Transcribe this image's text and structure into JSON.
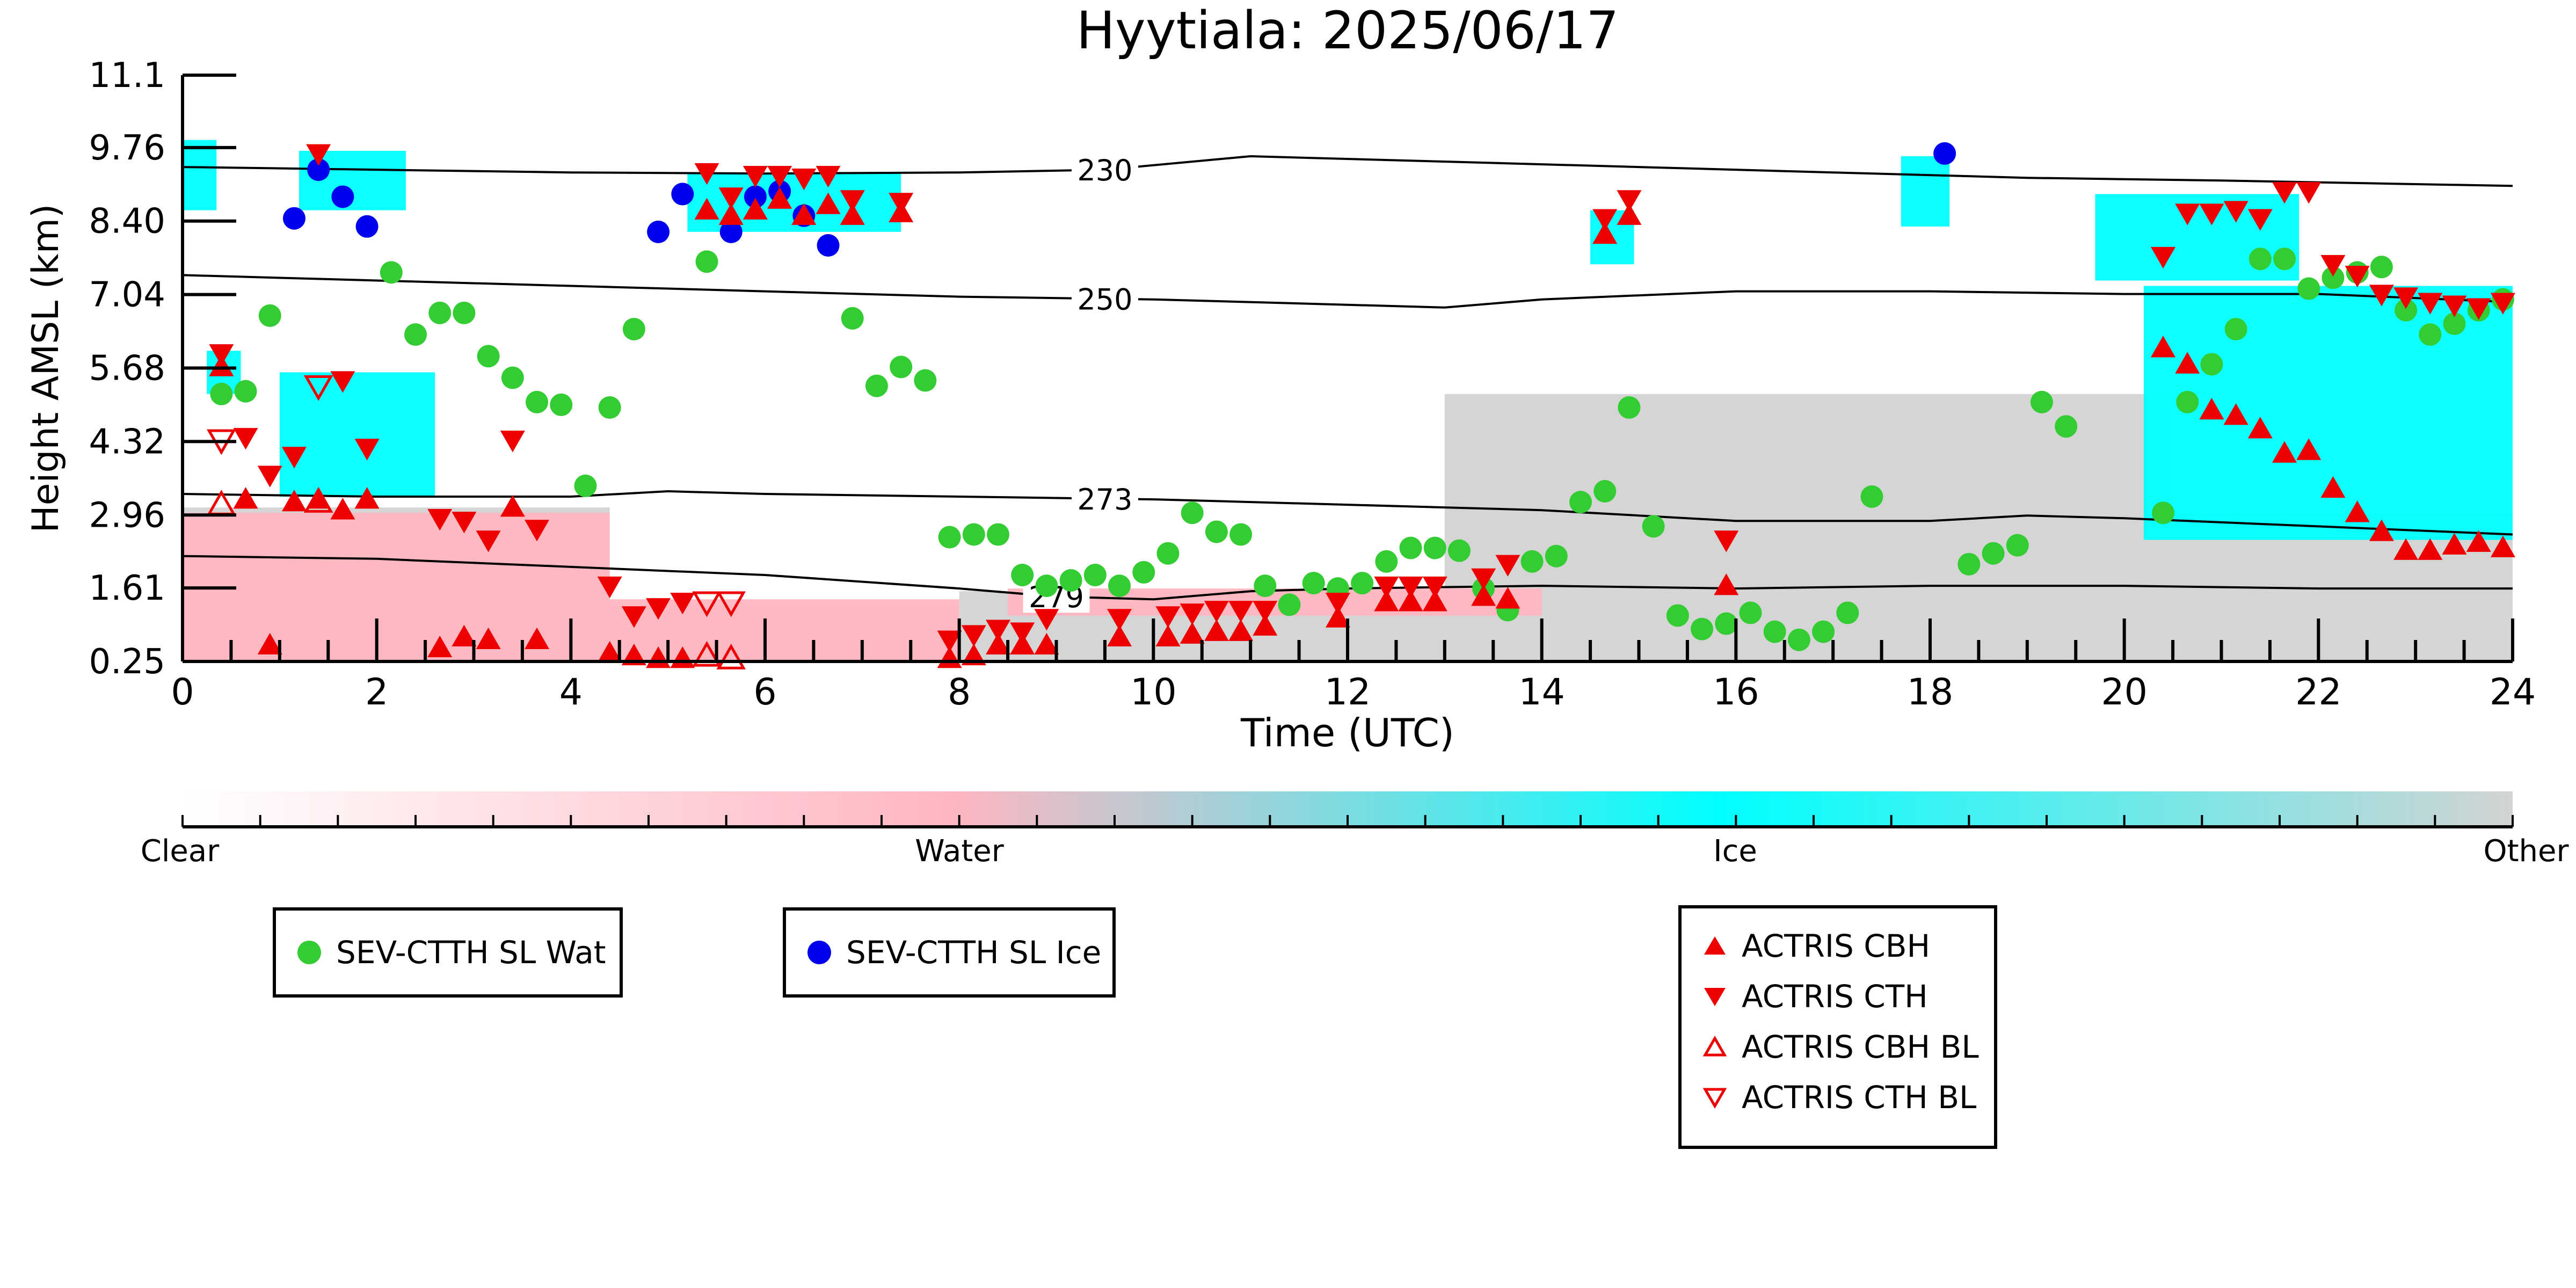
{
  "chart_data": {
    "type": "scatter",
    "title": "Hyytiala: 2025/06/17",
    "xlabel": "Time (UTC)",
    "ylabel": "Height AMSL (km)",
    "xlim": [
      0,
      24
    ],
    "ylim": [
      0.25,
      11.1
    ],
    "xticks": [
      "0",
      "2",
      "4",
      "6",
      "8",
      "10",
      "12",
      "14",
      "16",
      "18",
      "20",
      "22",
      "24"
    ],
    "yticks": [
      "0.25",
      "1.61",
      "2.96",
      "4.32",
      "5.68",
      "7.04",
      "8.40",
      "9.76",
      "11.1"
    ],
    "colorbar": {
      "labels": [
        "Clear",
        "Water",
        "Ice",
        "Other"
      ],
      "colors": [
        "#ffffff",
        "#ffb6c1",
        "#00ffff",
        "#d3d3d3"
      ]
    },
    "isotherms": [
      {
        "label": "230",
        "x": [
          0,
          2,
          4,
          6,
          8,
          9.5,
          11,
          13,
          15,
          17,
          19,
          21,
          22.5,
          24
        ],
        "y": [
          9.4,
          9.35,
          9.3,
          9.28,
          9.3,
          9.35,
          9.6,
          9.5,
          9.4,
          9.3,
          9.2,
          9.15,
          9.1,
          9.05
        ]
      },
      {
        "label": "250",
        "x": [
          0,
          2,
          4,
          6,
          8,
          10,
          12,
          13,
          14,
          16,
          18,
          20,
          22,
          24
        ],
        "y": [
          7.4,
          7.3,
          7.2,
          7.1,
          7.0,
          6.95,
          6.85,
          6.8,
          6.95,
          7.1,
          7.1,
          7.05,
          7.05,
          6.9
        ]
      },
      {
        "label": "273",
        "x": [
          0,
          2,
          4,
          5,
          6,
          8,
          10,
          12,
          14,
          16,
          18,
          19,
          20,
          22,
          24
        ],
        "y": [
          3.35,
          3.3,
          3.3,
          3.4,
          3.35,
          3.3,
          3.25,
          3.15,
          3.05,
          2.85,
          2.85,
          2.95,
          2.9,
          2.75,
          2.6
        ]
      },
      {
        "label": "279",
        "x": [
          0,
          2,
          4,
          6,
          8,
          9,
          10,
          11,
          12,
          14,
          16,
          18,
          20,
          22,
          24
        ],
        "y": [
          2.2,
          2.15,
          2.0,
          1.85,
          1.6,
          1.45,
          1.4,
          1.55,
          1.6,
          1.65,
          1.6,
          1.65,
          1.65,
          1.6,
          1.6
        ]
      }
    ],
    "series": [
      {
        "name": "SEV-CTTH SL Wat",
        "marker": "circle",
        "color": "#33cc33",
        "x": [
          0.4,
          0.65,
          0.9,
          2.15,
          2.4,
          2.65,
          2.9,
          3.15,
          3.4,
          3.65,
          3.9,
          4.15,
          4.4,
          4.65,
          5.4,
          6.9,
          7.15,
          7.4,
          7.65,
          7.9,
          8.15,
          8.4,
          8.65,
          8.9,
          9.15,
          9.4,
          9.65,
          9.9,
          10.15,
          10.4,
          10.65,
          10.9,
          11.15,
          11.4,
          11.65,
          11.9,
          12.15,
          12.4,
          12.65,
          12.9,
          13.15,
          13.4,
          13.65,
          13.9,
          14.15,
          14.4,
          14.65,
          14.9,
          15.15,
          15.4,
          15.65,
          15.9,
          16.15,
          16.4,
          16.65,
          16.9,
          17.15,
          17.4,
          18.4,
          18.65,
          18.9,
          19.15,
          19.4,
          20.4,
          20.65,
          20.9,
          21.15,
          21.4,
          21.65,
          21.9,
          22.15,
          22.4,
          22.65,
          22.9,
          23.15,
          23.4,
          23.65,
          23.9
        ],
        "y": [
          5.2,
          5.25,
          6.65,
          7.45,
          6.3,
          6.7,
          6.7,
          5.9,
          5.5,
          5.05,
          5.0,
          3.5,
          4.95,
          6.4,
          7.65,
          6.6,
          5.35,
          5.7,
          5.45,
          2.55,
          2.6,
          2.6,
          1.85,
          1.65,
          1.75,
          1.85,
          1.65,
          1.9,
          2.25,
          3.0,
          2.65,
          2.6,
          1.65,
          1.3,
          1.7,
          1.6,
          1.7,
          2.1,
          2.35,
          2.35,
          2.3,
          1.6,
          1.2,
          2.1,
          2.2,
          3.2,
          3.4,
          4.95,
          2.75,
          1.1,
          0.85,
          0.95,
          1.15,
          0.8,
          0.65,
          0.8,
          1.15,
          3.3,
          2.05,
          2.25,
          2.4,
          5.05,
          4.6,
          3.0,
          5.05,
          5.75,
          6.4,
          7.7,
          7.7,
          7.15,
          7.35,
          7.45,
          7.55,
          6.75,
          6.3,
          6.5,
          6.75,
          6.95
        ]
      },
      {
        "name": "SEV-CTTH SL Ice",
        "marker": "circle",
        "color": "#0000ee",
        "x": [
          1.15,
          1.4,
          1.65,
          1.9,
          4.9,
          5.15,
          5.65,
          5.9,
          6.15,
          6.4,
          6.65,
          18.15
        ],
        "y": [
          8.45,
          9.35,
          8.85,
          8.3,
          8.2,
          8.9,
          8.2,
          8.85,
          8.95,
          8.5,
          7.95,
          9.65
        ]
      },
      {
        "name": "ACTRIS CBH",
        "marker": "triangle-up",
        "color": "#ee0000",
        "x": [
          0.4,
          0.65,
          0.9,
          1.15,
          1.4,
          1.65,
          1.9,
          2.65,
          2.9,
          3.15,
          3.4,
          3.65,
          4.4,
          4.65,
          4.9,
          5.15,
          5.4,
          5.65,
          5.9,
          6.15,
          6.4,
          6.65,
          6.9,
          7.4,
          7.9,
          8.15,
          8.4,
          8.65,
          8.9,
          9.65,
          10.15,
          10.4,
          10.65,
          10.9,
          11.15,
          11.9,
          12.4,
          12.65,
          12.9,
          13.4,
          13.65,
          14.65,
          14.9,
          15.9,
          20.4,
          20.65,
          20.9,
          21.15,
          21.4,
          21.65,
          21.9,
          22.15,
          22.4,
          22.65,
          22.9,
          23.15,
          23.4,
          23.65,
          23.9
        ],
        "y": [
          5.7,
          3.25,
          0.55,
          3.2,
          3.25,
          3.05,
          3.25,
          0.5,
          0.7,
          0.65,
          3.1,
          0.65,
          0.4,
          0.35,
          0.3,
          0.3,
          8.6,
          8.5,
          8.6,
          8.8,
          8.5,
          8.7,
          8.5,
          8.55,
          0.3,
          0.35,
          0.55,
          0.55,
          0.55,
          0.7,
          0.7,
          0.75,
          0.8,
          0.8,
          0.9,
          1.05,
          1.35,
          1.35,
          1.35,
          1.45,
          1.4,
          8.15,
          8.5,
          1.65,
          6.05,
          5.75,
          4.9,
          4.8,
          4.55,
          4.1,
          4.15,
          3.45,
          3.0,
          2.65,
          2.3,
          2.3,
          2.4,
          2.45,
          2.35
        ]
      },
      {
        "name": "ACTRIS CTH",
        "marker": "triangle-down",
        "color": "#ee0000",
        "x": [
          0.4,
          0.65,
          0.9,
          1.15,
          1.4,
          1.65,
          1.9,
          2.65,
          2.9,
          3.15,
          3.4,
          3.65,
          4.4,
          4.65,
          4.9,
          5.15,
          5.4,
          5.65,
          5.9,
          6.15,
          6.4,
          6.65,
          6.9,
          7.4,
          7.9,
          8.15,
          8.4,
          8.65,
          8.9,
          9.65,
          10.15,
          10.4,
          10.65,
          10.9,
          11.15,
          11.9,
          12.4,
          12.65,
          12.9,
          13.4,
          13.65,
          14.65,
          14.9,
          15.9,
          20.4,
          20.65,
          20.9,
          21.15,
          21.4,
          21.65,
          21.9,
          22.15,
          22.4,
          22.65,
          22.9,
          23.15,
          23.4,
          23.65,
          23.9
        ],
        "y": [
          5.95,
          4.4,
          3.7,
          4.05,
          9.65,
          5.45,
          4.2,
          2.9,
          2.85,
          2.5,
          4.35,
          2.7,
          1.65,
          1.1,
          1.25,
          1.35,
          9.3,
          8.85,
          9.25,
          9.25,
          9.2,
          9.25,
          8.8,
          8.75,
          0.65,
          0.75,
          0.85,
          0.8,
          1.05,
          1.05,
          1.1,
          1.15,
          1.2,
          1.2,
          1.2,
          1.35,
          1.65,
          1.65,
          1.65,
          1.8,
          2.05,
          8.45,
          8.8,
          2.5,
          7.75,
          8.55,
          8.55,
          8.6,
          8.45,
          8.95,
          8.95,
          7.6,
          7.4,
          7.05,
          7.0,
          6.9,
          6.85,
          6.8,
          6.9
        ]
      },
      {
        "name": "ACTRIS CBH BL",
        "marker": "triangle-up-open",
        "color": "#ee0000",
        "x": [
          0.4,
          1.4,
          5.4,
          5.65
        ],
        "y": [
          3.15,
          3.2,
          0.35,
          0.3
        ]
      },
      {
        "name": "ACTRIS CTH BL",
        "marker": "triangle-down-open",
        "color": "#ee0000",
        "x": [
          0.4,
          1.4,
          5.4,
          5.65
        ],
        "y": [
          4.35,
          5.35,
          1.35,
          1.35
        ]
      }
    ]
  },
  "legend": {
    "wat": "SEV-CTTH SL Wat",
    "ice": "SEV-CTTH SL Ice",
    "cbh": "ACTRIS CBH",
    "cth": "ACTRIS CTH",
    "cbh_bl": "ACTRIS CBH BL",
    "cth_bl": "ACTRIS CTH BL"
  }
}
